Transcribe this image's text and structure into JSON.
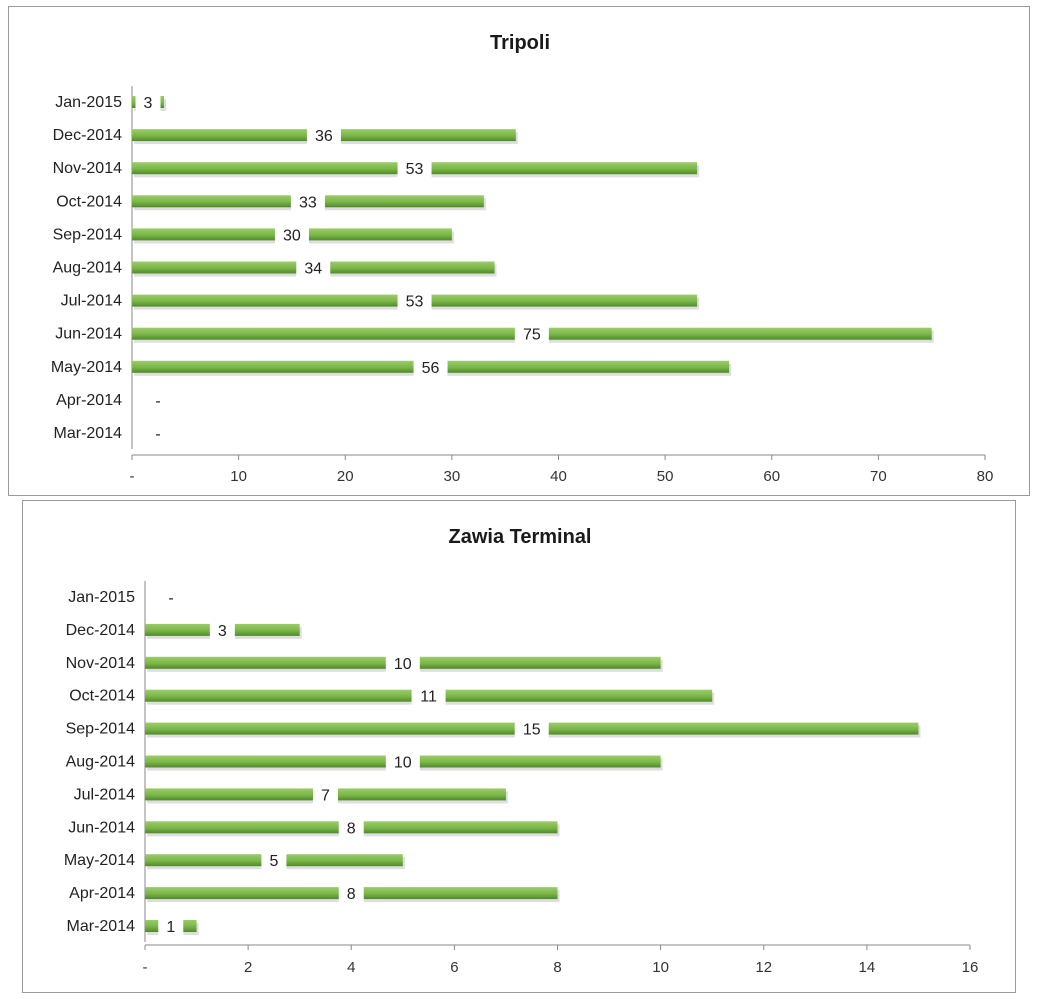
{
  "chart_data": [
    {
      "type": "bar",
      "orientation": "horizontal",
      "title": "Tripoli",
      "categories": [
        "Jan-2015",
        "Dec-2014",
        "Nov-2014",
        "Oct-2014",
        "Sep-2014",
        "Aug-2014",
        "Jul-2014",
        "Jun-2014",
        "May-2014",
        "Apr-2014",
        "Mar-2014"
      ],
      "values": [
        3,
        36,
        53,
        33,
        30,
        34,
        53,
        75,
        56,
        0,
        0
      ],
      "data_labels": [
        "3",
        "36",
        "53",
        "33",
        "30",
        "34",
        "53",
        "75",
        "56",
        "-",
        "-"
      ],
      "xticks": [
        "-",
        "10",
        "20",
        "30",
        "40",
        "50",
        "60",
        "70",
        "80"
      ],
      "xlim": [
        0,
        80
      ],
      "xlabel": "",
      "ylabel": "",
      "grid": false,
      "legend": "none",
      "bar_color": "#7ab648"
    },
    {
      "type": "bar",
      "orientation": "horizontal",
      "title": "Zawia Terminal",
      "categories": [
        "Jan-2015",
        "Dec-2014",
        "Nov-2014",
        "Oct-2014",
        "Sep-2014",
        "Aug-2014",
        "Jul-2014",
        "Jun-2014",
        "May-2014",
        "Apr-2014",
        "Mar-2014"
      ],
      "values": [
        0,
        3,
        10,
        11,
        15,
        10,
        7,
        8,
        5,
        8,
        1
      ],
      "data_labels": [
        "-",
        "3",
        "10",
        "11",
        "15",
        "10",
        "7",
        "8",
        "5",
        "8",
        "1"
      ],
      "xticks": [
        "-",
        "2",
        "4",
        "6",
        "8",
        "10",
        "12",
        "14",
        "16"
      ],
      "xlim": [
        0,
        16
      ],
      "xlabel": "",
      "ylabel": "",
      "grid": false,
      "legend": "none",
      "bar_color": "#7ab648"
    }
  ]
}
